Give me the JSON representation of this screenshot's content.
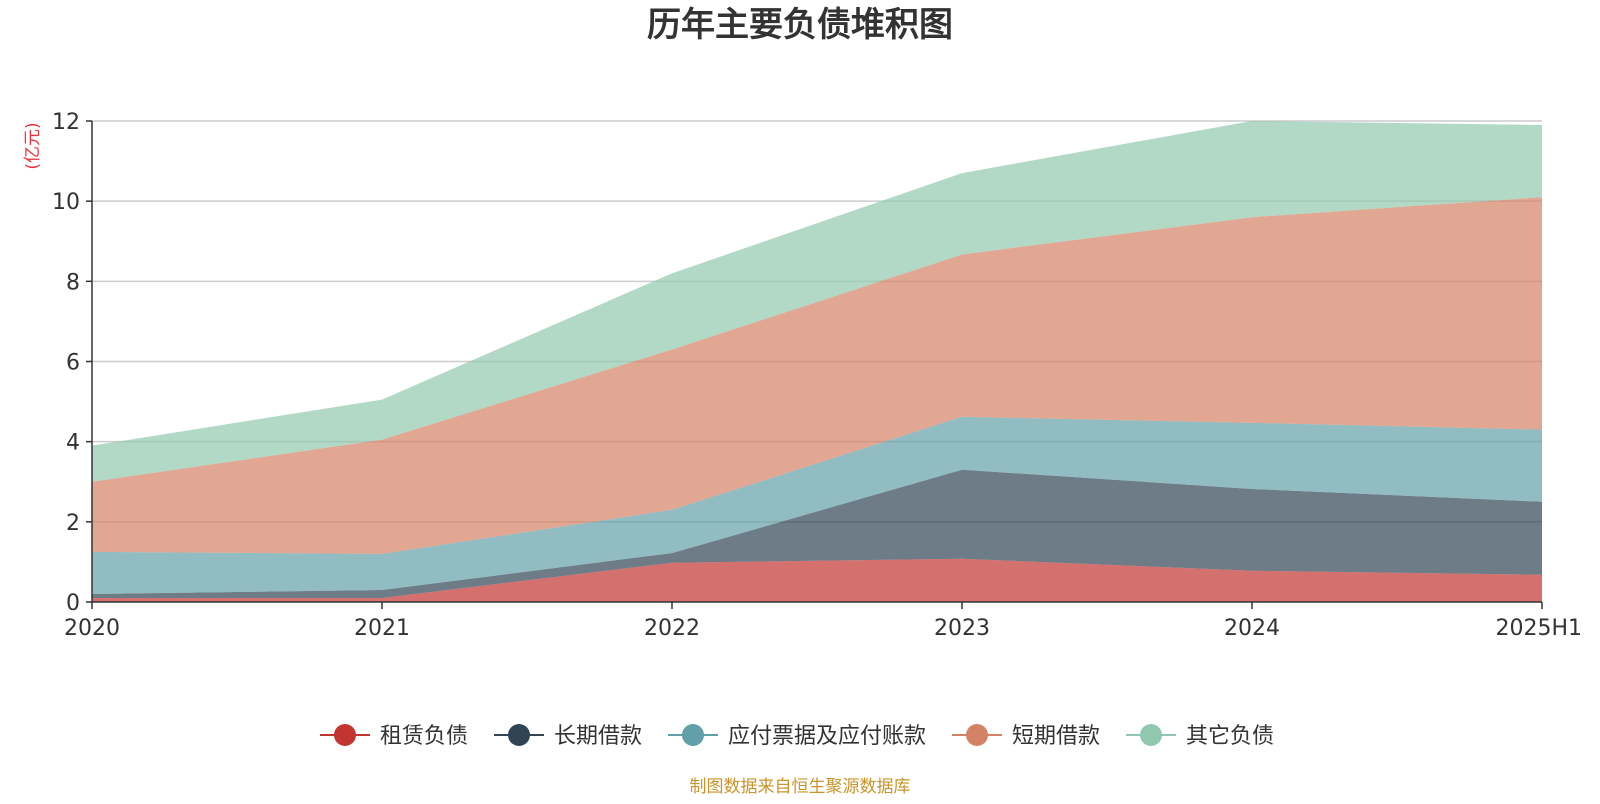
{
  "chart_data": {
    "type": "area",
    "stacked": true,
    "title": "历年主要负债堆积图",
    "unit_label": "(亿元)",
    "categories": [
      "2020",
      "2021",
      "2022",
      "2023",
      "2024",
      "2025H1"
    ],
    "ylim": [
      0,
      12
    ],
    "yticks": [
      "0",
      "2",
      "4",
      "6",
      "8",
      "10",
      "12"
    ],
    "grid": true,
    "legend_position": "bottom",
    "series": [
      {
        "name": "租赁负债",
        "color": "#c23531",
        "values": [
          0.1,
          0.1,
          0.98,
          1.08,
          0.78,
          0.68
        ]
      },
      {
        "name": "长期借款",
        "color": "#2f4554",
        "values": [
          0.1,
          0.2,
          0.24,
          2.22,
          2.04,
          1.82
        ]
      },
      {
        "name": "应付票据及应付账款",
        "color": "#61a0a8",
        "values": [
          1.05,
          0.9,
          1.08,
          1.32,
          1.65,
          1.8
        ]
      },
      {
        "name": "短期借款",
        "color": "#d48265",
        "values": [
          1.75,
          2.85,
          4.0,
          4.05,
          5.13,
          5.8
        ]
      },
      {
        "name": "其它负债",
        "color": "#91c7ae",
        "values": [
          0.9,
          1.0,
          1.9,
          2.03,
          2.4,
          1.8
        ]
      }
    ],
    "source": "制图数据来自恒生聚源数据库"
  }
}
